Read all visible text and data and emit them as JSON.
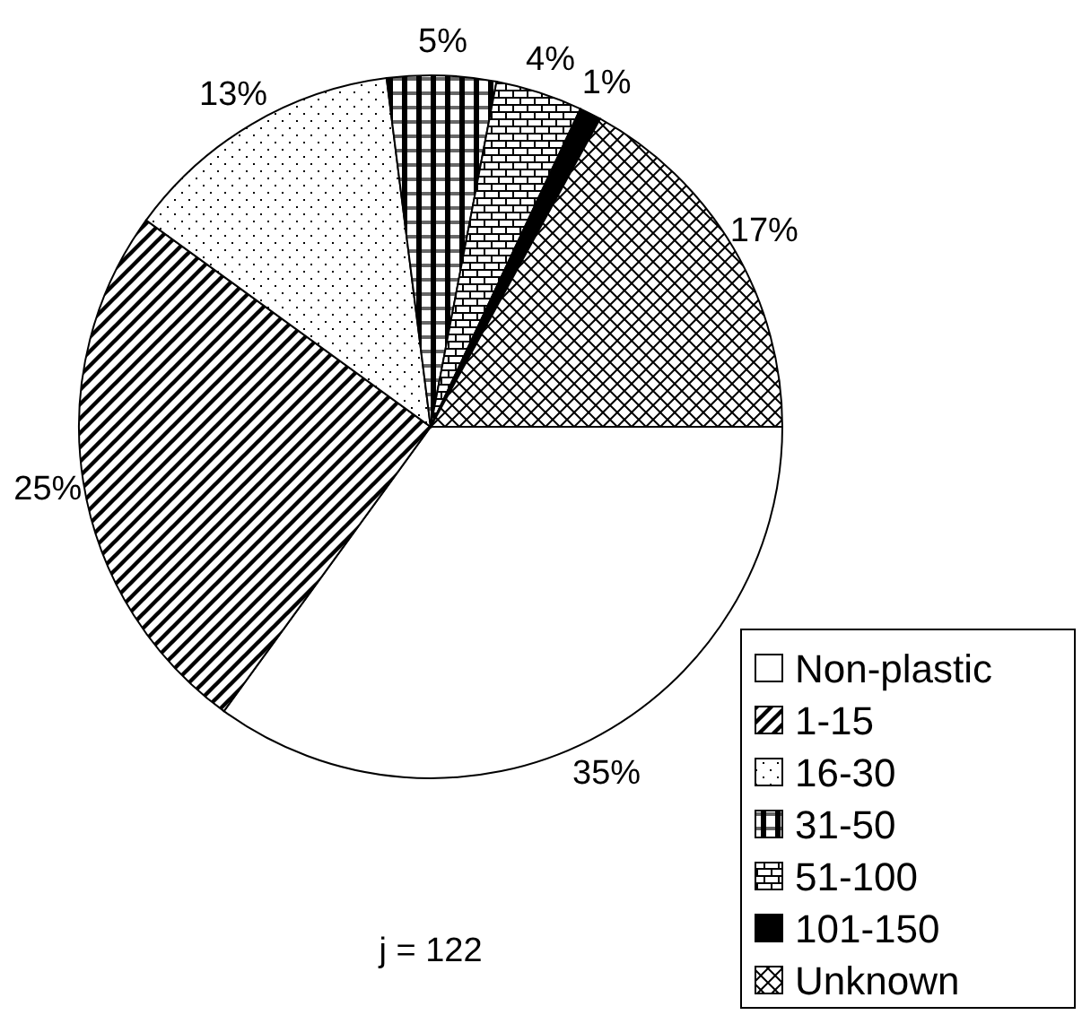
{
  "chart_data": {
    "type": "pie",
    "categories": [
      "Non-plastic",
      "1-15",
      "16-30",
      "31-50",
      "51-100",
      "101-150",
      "Unknown"
    ],
    "values": [
      35,
      25,
      13,
      5,
      4,
      1,
      17
    ],
    "value_labels": [
      "35%",
      "25%",
      "13%",
      "5%",
      "4%",
      "1%",
      "17%"
    ],
    "colors": [
      "#ffffff",
      "#000000",
      "#000000",
      "#000000",
      "#000000",
      "#000000",
      "#000000"
    ],
    "legend": "bottom right",
    "annotations": [
      "j = 122"
    ]
  }
}
